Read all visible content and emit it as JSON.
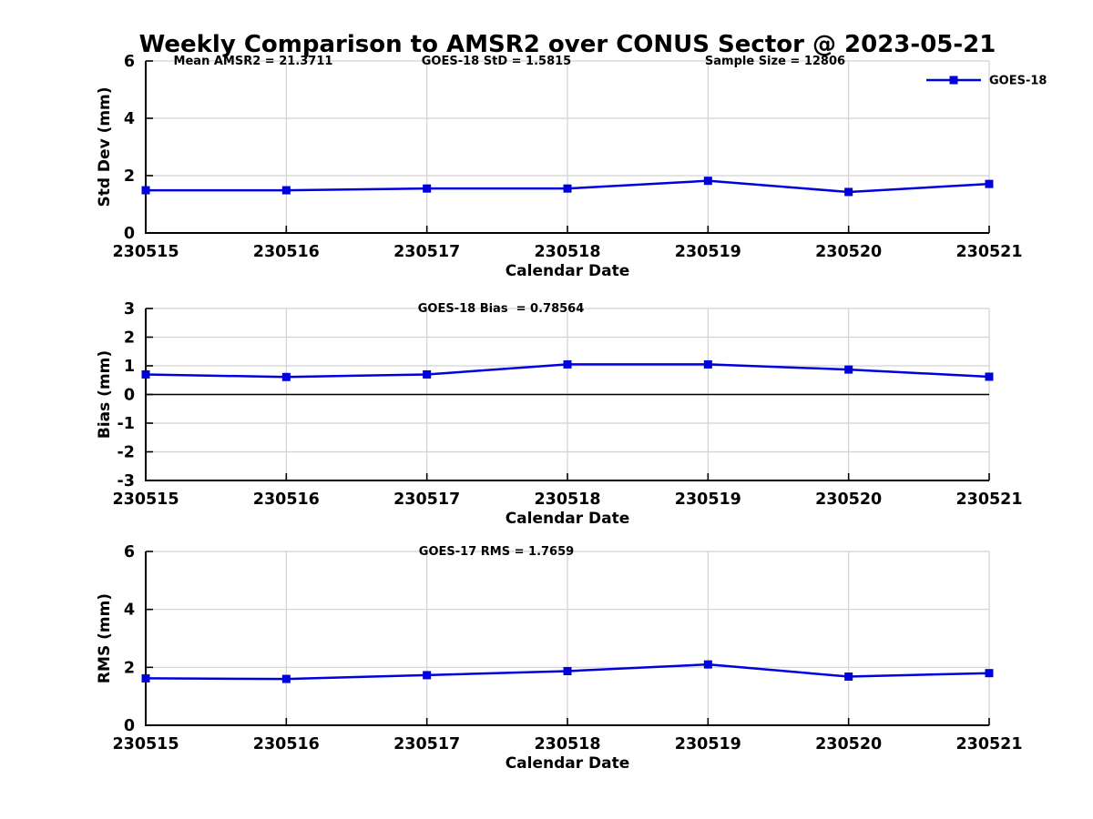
{
  "title": "Weekly Comparison to AMSR2 over CONUS Sector @ 2023-05-21",
  "colors": {
    "line": "#0000dd",
    "grid": "#d2d2d2",
    "axis": "#000000",
    "zero_line": "#000000",
    "background": "#ffffff"
  },
  "chart_data": [
    {
      "id": "stddev",
      "type": "line",
      "ylabel": "Std Dev (mm)",
      "xlabel": "Calendar Date",
      "ylim": [
        0,
        6
      ],
      "yticks": [
        0,
        2,
        4,
        6
      ],
      "grid": true,
      "zero_line": false,
      "categories": [
        "230515",
        "230516",
        "230517",
        "230518",
        "230519",
        "230520",
        "230521"
      ],
      "series": [
        {
          "name": "GOES-18",
          "values": [
            1.49,
            1.49,
            1.55,
            1.55,
            1.82,
            1.43,
            1.71
          ]
        }
      ],
      "annotations": [
        {
          "text": "Mean AMSR2 = 21.3711"
        },
        {
          "text": "GOES-18 StD = 1.5815"
        },
        {
          "text": "Sample Size = 12806"
        }
      ],
      "legend": {
        "label": "GOES-18",
        "position": "top-right"
      }
    },
    {
      "id": "bias",
      "type": "line",
      "ylabel": "Bias (mm)",
      "xlabel": "Calendar Date",
      "ylim": [
        -3,
        3
      ],
      "yticks": [
        -3,
        -2,
        -1,
        0,
        1,
        2,
        3
      ],
      "grid": true,
      "zero_line": true,
      "categories": [
        "230515",
        "230516",
        "230517",
        "230518",
        "230519",
        "230520",
        "230521"
      ],
      "series": [
        {
          "name": "GOES-18",
          "values": [
            0.7,
            0.61,
            0.7,
            1.05,
            1.05,
            0.87,
            0.62
          ]
        }
      ],
      "annotations": [
        {
          "text": "GOES-18 Bias  = 0.78564"
        }
      ],
      "legend": null
    },
    {
      "id": "rms",
      "type": "line",
      "ylabel": "RMS (mm)",
      "xlabel": "Calendar Date",
      "ylim": [
        0,
        6
      ],
      "yticks": [
        0,
        2,
        4,
        6
      ],
      "grid": true,
      "zero_line": false,
      "categories": [
        "230515",
        "230516",
        "230517",
        "230518",
        "230519",
        "230520",
        "230521"
      ],
      "series": [
        {
          "name": "GOES-17",
          "values": [
            1.62,
            1.6,
            1.73,
            1.87,
            2.1,
            1.68,
            1.8
          ]
        }
      ],
      "annotations": [
        {
          "text": "GOES-17 RMS = 1.7659"
        }
      ],
      "legend": null
    }
  ]
}
